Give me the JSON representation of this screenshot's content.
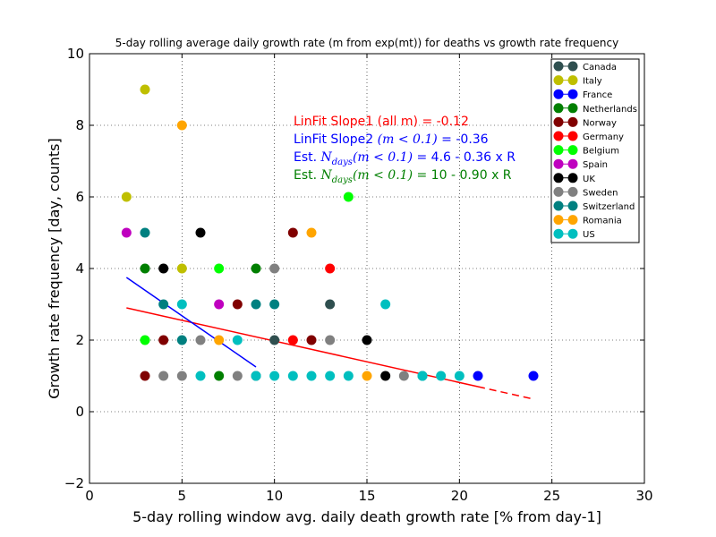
{
  "chart_data": {
    "type": "scatter",
    "title": "5-day rolling average daily growth rate (m from exp(mt)) for deaths vs  growth rate frequency",
    "xlabel": "5-day rolling window avg. daily death growth rate [% from day-1]",
    "ylabel": "Growth rate frequency [day, counts]",
    "xlim": [
      0,
      30
    ],
    "ylim": [
      -2,
      10
    ],
    "xticks": [
      "0",
      "5",
      "10",
      "15",
      "20",
      "25",
      "30"
    ],
    "yticks": [
      "−2",
      "0",
      "2",
      "4",
      "6",
      "8",
      "10"
    ],
    "grid": true,
    "legend_position": "top-right",
    "series": [
      {
        "name": "Canada",
        "color": "#2F4F4F",
        "points": [
          [
            9,
            1
          ],
          [
            10,
            2
          ],
          [
            13,
            3
          ]
        ]
      },
      {
        "name": "Italy",
        "color": "#BFBF00",
        "points": [
          [
            2,
            6
          ],
          [
            3,
            9
          ],
          [
            5,
            4
          ]
        ]
      },
      {
        "name": "France",
        "color": "#0000FF",
        "points": [
          [
            21,
            1
          ],
          [
            24,
            1
          ]
        ]
      },
      {
        "name": "Netherlands",
        "color": "#007F00",
        "points": [
          [
            3,
            4
          ],
          [
            7,
            1
          ],
          [
            9,
            4
          ]
        ]
      },
      {
        "name": "Norway",
        "color": "#800000",
        "points": [
          [
            3,
            1
          ],
          [
            4,
            2
          ],
          [
            8,
            3
          ],
          [
            11,
            5
          ],
          [
            12,
            2
          ]
        ]
      },
      {
        "name": "Germany",
        "color": "#FF0000",
        "points": [
          [
            11,
            2
          ],
          [
            13,
            4
          ]
        ]
      },
      {
        "name": "Belgium",
        "color": "#00FF00",
        "points": [
          [
            3,
            2
          ],
          [
            7,
            4
          ],
          [
            14,
            6
          ]
        ]
      },
      {
        "name": "Spain",
        "color": "#BF00BF",
        "points": [
          [
            2,
            5
          ],
          [
            7,
            3
          ]
        ]
      },
      {
        "name": "UK",
        "color": "#000000",
        "points": [
          [
            4,
            4
          ],
          [
            6,
            5
          ],
          [
            15,
            2
          ],
          [
            16,
            1
          ]
        ]
      },
      {
        "name": "Sweden",
        "color": "#808080",
        "points": [
          [
            4,
            1
          ],
          [
            5,
            1
          ],
          [
            6,
            2
          ],
          [
            8,
            1
          ],
          [
            10,
            4
          ],
          [
            13,
            2
          ],
          [
            17,
            1
          ]
        ]
      },
      {
        "name": "Switzerland",
        "color": "#008080",
        "points": [
          [
            3,
            5
          ],
          [
            4,
            3
          ],
          [
            5,
            2
          ],
          [
            9,
            3
          ],
          [
            10,
            3
          ],
          [
            18,
            1
          ]
        ]
      },
      {
        "name": "Romania",
        "color": "#FFA500",
        "points": [
          [
            5,
            8
          ],
          [
            7,
            2
          ],
          [
            12,
            5
          ],
          [
            15,
            1
          ]
        ]
      },
      {
        "name": "US",
        "color": "#00BFBF",
        "points": [
          [
            5,
            3
          ],
          [
            6,
            1
          ],
          [
            8,
            2
          ],
          [
            9,
            1
          ],
          [
            10,
            1
          ],
          [
            11,
            1
          ],
          [
            12,
            1
          ],
          [
            13,
            1
          ],
          [
            14,
            1
          ],
          [
            16,
            3
          ],
          [
            18,
            1
          ],
          [
            19,
            1
          ],
          [
            20,
            1
          ]
        ]
      }
    ],
    "fit_lines": [
      {
        "label": "LinFit Slope1 (all m)",
        "color": "#FF0000",
        "x": [
          2,
          21
        ],
        "y": [
          2.9,
          0.7
        ]
      },
      {
        "label": "LinFit Slope2",
        "color": "#0000FF",
        "x": [
          2,
          9
        ],
        "y": [
          3.75,
          1.25
        ]
      }
    ],
    "annotations": [
      {
        "text": "LinFit Slope1 (all m) = -0.12",
        "color": "#FF0000"
      },
      {
        "text": "LinFit Slope2 (m < 0.1) = -0.36",
        "color": "#0000FF"
      },
      {
        "text": "Est. N_days(m < 0.1) = 4.6 - 0.36 x R",
        "color": "#0000FF"
      },
      {
        "text": "Est. N_days(m < 0.1) = 10 - 0.90 x R",
        "color": "#007F00"
      }
    ]
  }
}
